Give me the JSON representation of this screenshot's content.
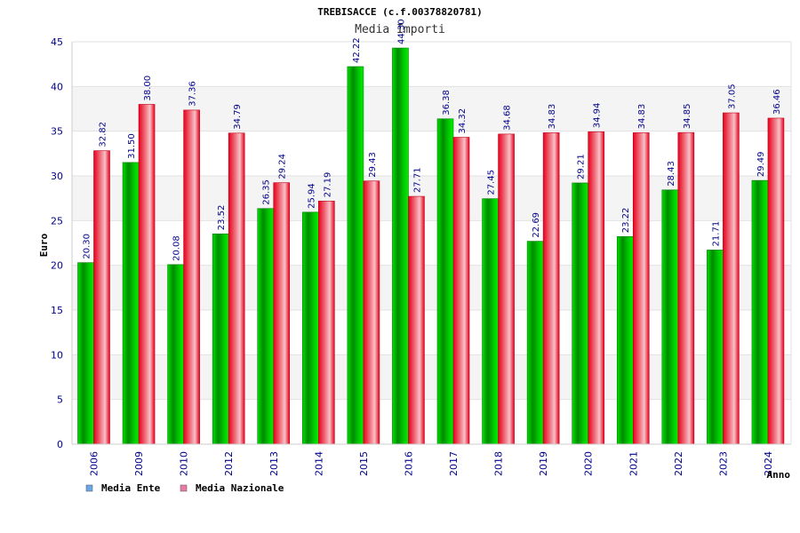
{
  "chart_data": {
    "type": "bar",
    "title": "TREBISACCE (c.f.00378820781)",
    "subtitle": "Media Importi",
    "ylabel": "Euro",
    "xlabel": "Anno",
    "ylim": [
      0,
      45
    ],
    "yticks": [
      0,
      5,
      10,
      15,
      20,
      25,
      30,
      35,
      40,
      45
    ],
    "grid": true,
    "legend_placement": "bottom-left",
    "categories": [
      "2006",
      "2009",
      "2010",
      "2012",
      "2013",
      "2014",
      "2015",
      "2016",
      "2017",
      "2018",
      "2019",
      "2020",
      "2021",
      "2022",
      "2023",
      "2024"
    ],
    "series": [
      {
        "name": "Media Ente",
        "color": "#00a000",
        "legend_color": "#6aa6e8",
        "values": [
          20.3,
          31.5,
          20.08,
          23.52,
          26.35,
          25.94,
          42.22,
          44.3,
          36.38,
          27.45,
          22.69,
          29.21,
          23.22,
          28.43,
          21.71,
          29.49
        ],
        "labels": [
          "20.30",
          "31.50",
          "20.08",
          "23.52",
          "26.35",
          "25.94",
          "42.22",
          "44.30",
          "36.38",
          "27.45",
          "22.69",
          "29.21",
          "23.22",
          "28.43",
          "21.71",
          "29.49"
        ]
      },
      {
        "name": "Media Nazionale",
        "color": "#e8001c",
        "legend_color": "#e87aa6",
        "values": [
          32.82,
          38.0,
          37.36,
          34.79,
          29.24,
          27.19,
          29.43,
          27.71,
          34.32,
          34.68,
          34.83,
          34.94,
          34.83,
          34.85,
          37.05,
          36.46
        ],
        "labels": [
          "32.82",
          "38.00",
          "37.36",
          "34.79",
          "29.24",
          "27.19",
          "29.43",
          "27.71",
          "34.32",
          "34.68",
          "34.83",
          "34.94",
          "34.83",
          "34.85",
          "37.05",
          "36.46"
        ]
      }
    ]
  }
}
